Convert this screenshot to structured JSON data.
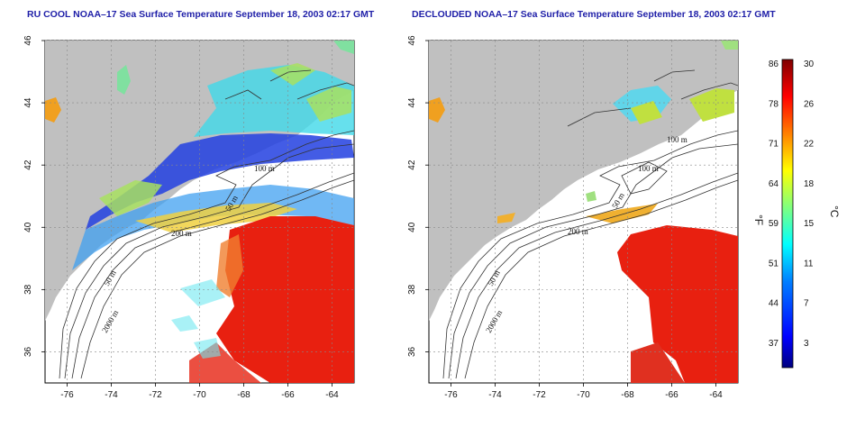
{
  "panels": [
    {
      "title": "RU COOL NOAA–17 Sea Surface Temperature September 18, 2003 02:17 GMT",
      "contour_labels": [
        "100 m",
        "50 m",
        "200 m",
        "50 m",
        "2000 m"
      ]
    },
    {
      "title": "DECLOUDED NOAA–17 Sea Surface Temperature September 18, 2003 02:17 GMT",
      "contour_labels": [
        "100 m",
        "100 m",
        "50 m",
        "200 m",
        "50 m",
        "2000 m"
      ]
    }
  ],
  "axes": {
    "x_ticks": [
      "-76",
      "-74",
      "-72",
      "-70",
      "-68",
      "-66",
      "-64"
    ],
    "y_ticks": [
      "36",
      "38",
      "40",
      "42",
      "44",
      "46"
    ],
    "lon_range": [
      -77.0,
      -63.0
    ],
    "lat_range": [
      35.0,
      46.0
    ],
    "grid": true
  },
  "colorbar": {
    "celsius_ticks": [
      "30",
      "26",
      "22",
      "18",
      "15",
      "11",
      "7",
      "3"
    ],
    "fahrenheit_ticks": [
      "86",
      "78",
      "71",
      "64",
      "59",
      "51",
      "44",
      "37"
    ],
    "celsius_unit": "°C",
    "fahrenheit_unit": "°F",
    "range_c": [
      0,
      30
    ],
    "colors": [
      "#00007f",
      "#0000ff",
      "#007fff",
      "#00ffff",
      "#7fff7f",
      "#ffff00",
      "#ff7f00",
      "#ff0000",
      "#7f0000"
    ]
  },
  "colors": {
    "land": "#c0c0c0",
    "ocean": "#ffffff",
    "title": "#1f1fa8"
  }
}
